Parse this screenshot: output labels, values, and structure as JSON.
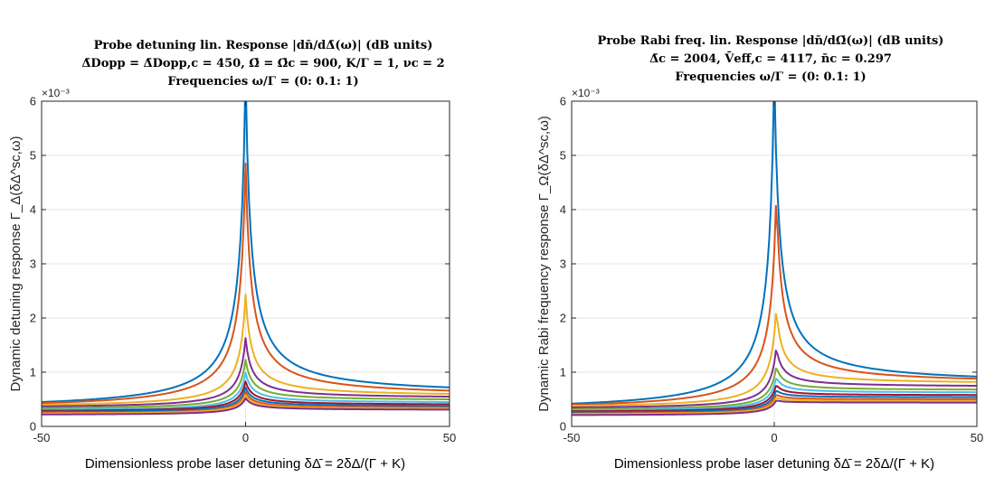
{
  "chart_data": [
    {
      "type": "line",
      "title_lines": [
        "Probe detuning lin. Response |dn̄/dΔ̄(ω)| (dB units)",
        "Δ̄Dopp = Δ̄Dopp,c = 450, Ω̄ = Ω̄c = 900, K/Γ = 1, νc = 2",
        "Frequencies ω/Γ = (0: 0.1: 1)"
      ],
      "xlabel": "Dimensionless probe laser detuning δΔ̄ = 2δΔ/(Γ + K)",
      "ylabel": "Dynamic detuning response Γ_Δ(δΔ^sc,ω)",
      "exponent_label": "×10⁻³",
      "xlim": [
        -50,
        50
      ],
      "ylim": [
        0,
        6
      ],
      "y_scale_factor": 0.001,
      "xticks": [
        -50,
        0,
        50
      ],
      "yticks": [
        0,
        1,
        2,
        3,
        4,
        5,
        6
      ],
      "grid": true,
      "series": [
        {
          "omega": 0.0,
          "color": "#0072BD",
          "peak": 6.5,
          "center": 0.0,
          "edge_left": 0.45,
          "edge_right": 0.72
        },
        {
          "omega": 0.1,
          "color": "#D95319",
          "peak": 4.85,
          "center": 0.0,
          "edge_left": 0.43,
          "edge_right": 0.66
        },
        {
          "omega": 0.2,
          "color": "#EDB120",
          "peak": 2.43,
          "center": 0.0,
          "edge_left": 0.4,
          "edge_right": 0.6
        },
        {
          "omega": 0.3,
          "color": "#7E2F8E",
          "peak": 1.63,
          "center": 0.0,
          "edge_left": 0.37,
          "edge_right": 0.55
        },
        {
          "omega": 0.4,
          "color": "#77AC30",
          "peak": 1.23,
          "center": 0.0,
          "edge_left": 0.34,
          "edge_right": 0.5
        },
        {
          "omega": 0.5,
          "color": "#4DBEEE",
          "peak": 0.99,
          "center": 0.0,
          "edge_left": 0.31,
          "edge_right": 0.45
        },
        {
          "omega": 0.6,
          "color": "#A2142F",
          "peak": 0.83,
          "center": 0.0,
          "edge_left": 0.29,
          "edge_right": 0.41
        },
        {
          "omega": 0.7,
          "color": "#0072BD",
          "peak": 0.72,
          "center": 0.0,
          "edge_left": 0.27,
          "edge_right": 0.38
        },
        {
          "omega": 0.8,
          "color": "#D95319",
          "peak": 0.64,
          "center": 0.0,
          "edge_left": 0.25,
          "edge_right": 0.35
        },
        {
          "omega": 0.9,
          "color": "#EDB120",
          "peak": 0.58,
          "center": 0.0,
          "edge_left": 0.24,
          "edge_right": 0.33
        },
        {
          "omega": 1.0,
          "color": "#7E2F8E",
          "peak": 0.52,
          "center": 0.0,
          "edge_left": 0.22,
          "edge_right": 0.31
        }
      ]
    },
    {
      "type": "line",
      "title_lines": [
        "Probe Rabi freq. lin. Response |dn̄/dΩ̄(ω)| (dB units)",
        "Δ̄c = 2004, V̄eff,c = 4117, n̄c = 0.297",
        "Frequencies ω/Γ = (0: 0.1: 1)"
      ],
      "xlabel": "Dimensionless probe laser detuning δΔ̄ = 2δΔ/(Γ + K)",
      "ylabel": "Dynamic Rabi frequency response Γ_Ω(δΔ^sc,ω)",
      "exponent_label": "×10⁻³",
      "xlim": [
        -50,
        50
      ],
      "ylim": [
        0,
        6
      ],
      "y_scale_factor": 0.001,
      "xticks": [
        -50,
        0,
        50
      ],
      "yticks": [
        0,
        1,
        2,
        3,
        4,
        5,
        6
      ],
      "grid": true,
      "series": [
        {
          "omega": 0.0,
          "color": "#0072BD",
          "peak": 6.5,
          "center": 0.0,
          "edge_left": 0.42,
          "edge_right": 0.92
        },
        {
          "omega": 0.1,
          "color": "#D95319",
          "peak": 4.3,
          "center": 0.5,
          "edge_left": 0.4,
          "edge_right": 0.88
        },
        {
          "omega": 0.2,
          "color": "#EDB120",
          "peak": 2.18,
          "center": 0.5,
          "edge_left": 0.38,
          "edge_right": 0.82
        },
        {
          "omega": 0.3,
          "color": "#7E2F8E",
          "peak": 1.46,
          "center": 0.5,
          "edge_left": 0.35,
          "edge_right": 0.75
        },
        {
          "omega": 0.4,
          "color": "#77AC30",
          "peak": 1.11,
          "center": 0.5,
          "edge_left": 0.32,
          "edge_right": 0.68
        },
        {
          "omega": 0.5,
          "color": "#4DBEEE",
          "peak": 0.91,
          "center": 0.5,
          "edge_left": 0.3,
          "edge_right": 0.63
        },
        {
          "omega": 0.6,
          "color": "#A2142F",
          "peak": 0.77,
          "center": 0.5,
          "edge_left": 0.28,
          "edge_right": 0.58
        },
        {
          "omega": 0.7,
          "color": "#0072BD",
          "peak": 0.67,
          "center": 0.5,
          "edge_left": 0.26,
          "edge_right": 0.54
        },
        {
          "omega": 0.8,
          "color": "#D95319",
          "peak": 0.59,
          "center": 0.5,
          "edge_left": 0.24,
          "edge_right": 0.5
        },
        {
          "omega": 0.9,
          "color": "#EDB120",
          "peak": 0.53,
          "center": 0.5,
          "edge_left": 0.23,
          "edge_right": 0.47
        },
        {
          "omega": 1.0,
          "color": "#7E2F8E",
          "peak": 0.48,
          "center": 0.5,
          "edge_left": 0.21,
          "edge_right": 0.44
        }
      ]
    }
  ]
}
